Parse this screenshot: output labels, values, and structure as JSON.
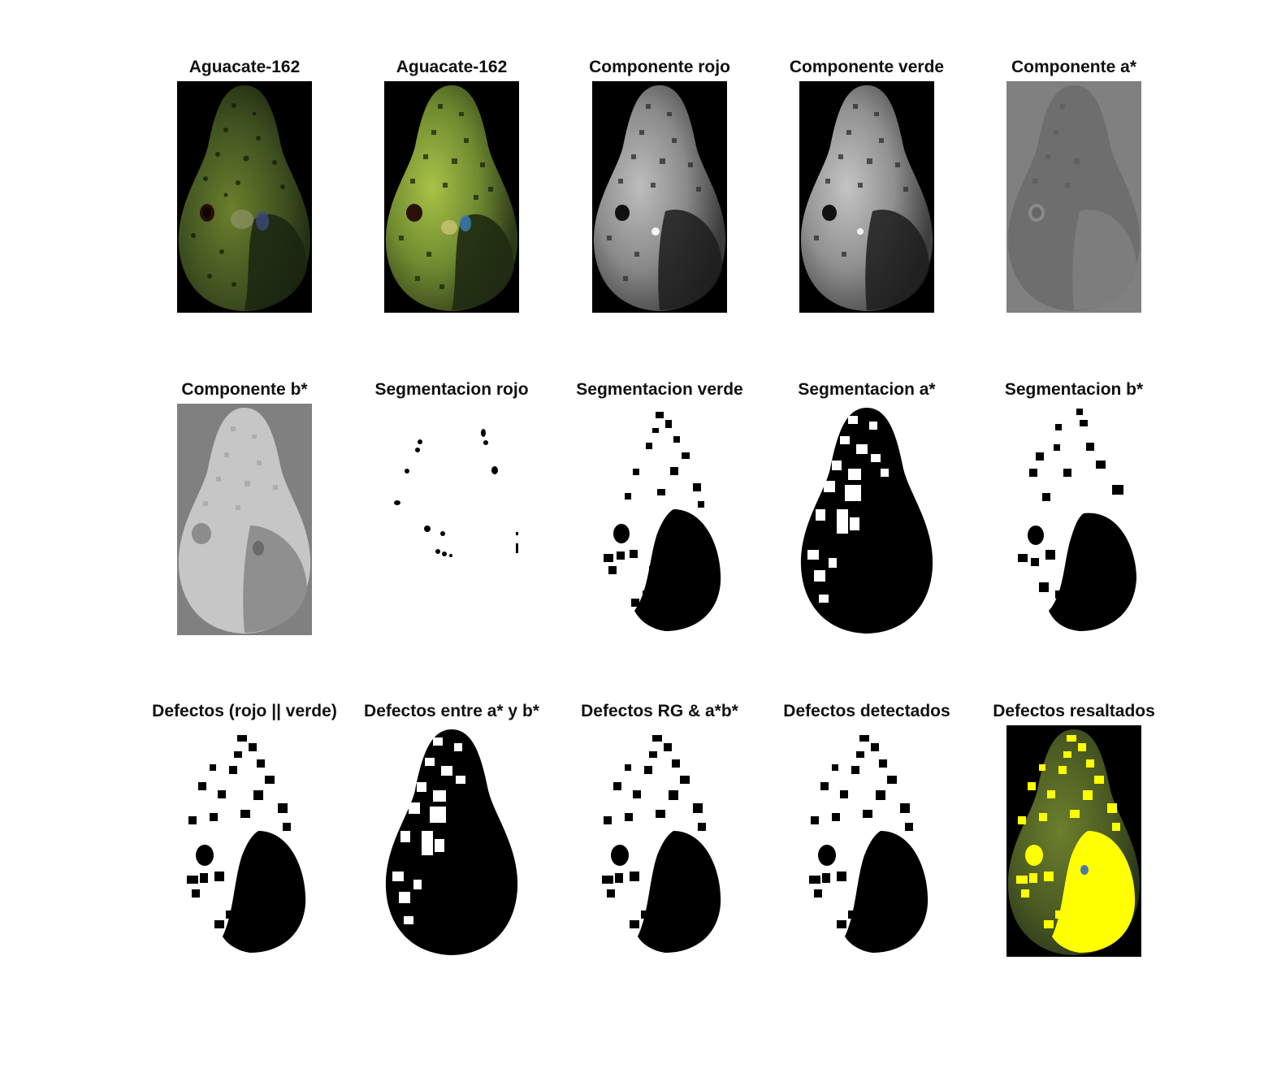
{
  "figure": {
    "panels": [
      {
        "title": "Aguacate-162",
        "style": "original-color"
      },
      {
        "title": "Aguacate-162",
        "style": "filtered-color"
      },
      {
        "title": "Componente rojo",
        "style": "grayscale"
      },
      {
        "title": "Componente verde",
        "style": "grayscale"
      },
      {
        "title": "Componente a*",
        "style": "gray-background"
      },
      {
        "title": "Componente b*",
        "style": "gray-background-light"
      },
      {
        "title": "Segmentacion rojo",
        "style": "sparse-mask"
      },
      {
        "title": "Segmentacion verde",
        "style": "mask"
      },
      {
        "title": "Segmentacion a*",
        "style": "mask"
      },
      {
        "title": "Segmentacion b*",
        "style": "mask"
      },
      {
        "title": "Defectos (rojo || verde)",
        "style": "mask"
      },
      {
        "title": "Defectos entre a* y b*",
        "style": "mask"
      },
      {
        "title": "Defectos RG & a*b*",
        "style": "mask"
      },
      {
        "title": "Defectos detectados",
        "style": "mask"
      },
      {
        "title": "Defectos resaltados",
        "style": "highlight"
      }
    ]
  },
  "colors": {
    "avocado_dark": "#2c3a18",
    "avocado_green": "#556b2a",
    "avocado_bright": "#9fb83d",
    "highlight_yellow": "#ffff00",
    "mask_black": "#000000",
    "mask_white": "#ffffff",
    "gray_background": "#808080"
  }
}
